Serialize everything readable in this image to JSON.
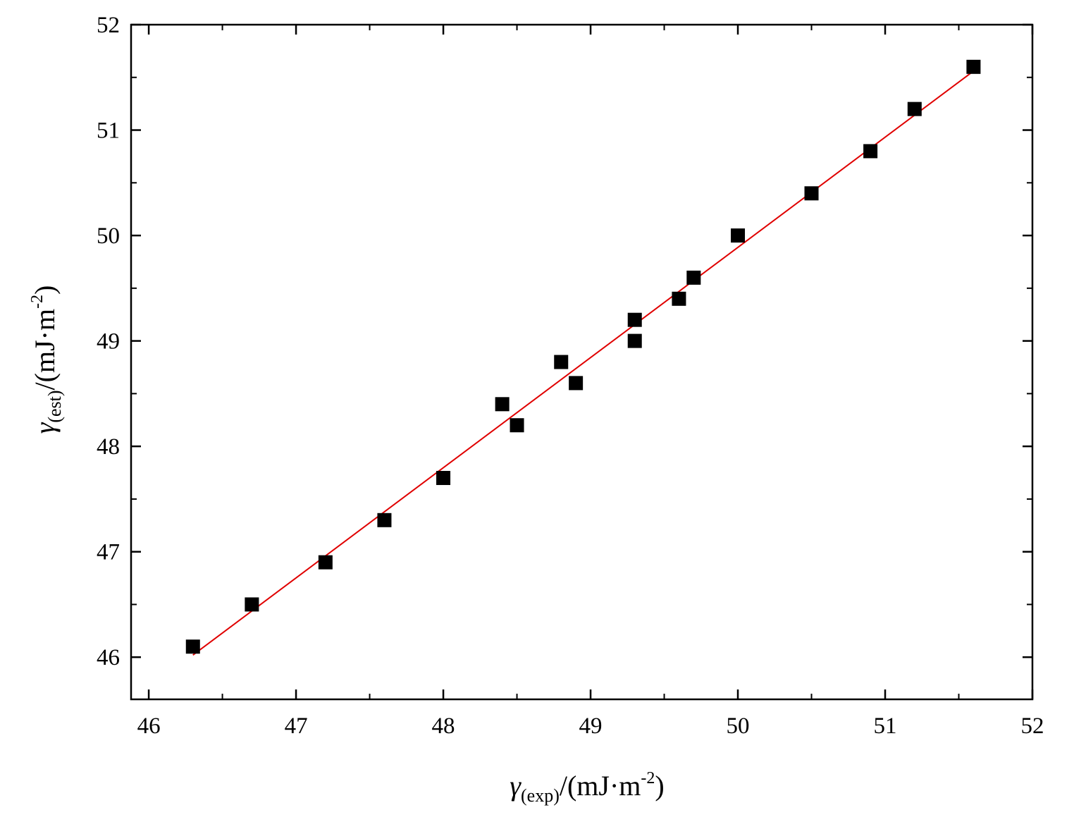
{
  "chart_data": {
    "type": "scatter",
    "title": "",
    "xlabel": {
      "symbol": "γ",
      "subscript": "(exp)",
      "unit_prefix": "/(mJ·m",
      "unit_power": "-2",
      "unit_suffix": ")"
    },
    "ylabel": {
      "symbol": "γ",
      "subscript": "(est)",
      "unit_prefix": "/(mJ·m",
      "unit_power": "-2",
      "unit_suffix": ")"
    },
    "xlim": [
      45.88,
      52.0
    ],
    "ylim": [
      45.6,
      52.0
    ],
    "x_ticks": [
      "46",
      "47",
      "48",
      "49",
      "50",
      "51",
      "52"
    ],
    "y_ticks": [
      "46",
      "47",
      "48",
      "49",
      "50",
      "51",
      "52"
    ],
    "grid": false,
    "marker": "square",
    "marker_color": "#000000",
    "points": {
      "x": [
        46.3,
        46.7,
        47.2,
        47.6,
        48.0,
        48.4,
        48.5,
        48.8,
        48.9,
        49.3,
        49.3,
        49.6,
        49.7,
        50.0,
        50.5,
        50.9,
        51.2,
        51.6
      ],
      "y": [
        46.1,
        46.5,
        46.9,
        47.3,
        47.7,
        48.4,
        48.2,
        48.8,
        48.6,
        49.2,
        49.0,
        49.4,
        49.6,
        50.0,
        50.4,
        50.8,
        51.2,
        51.6
      ]
    },
    "fit_line": {
      "color": "#e00000",
      "x": [
        46.3,
        51.6
      ],
      "y": [
        46.02,
        51.56
      ]
    }
  }
}
